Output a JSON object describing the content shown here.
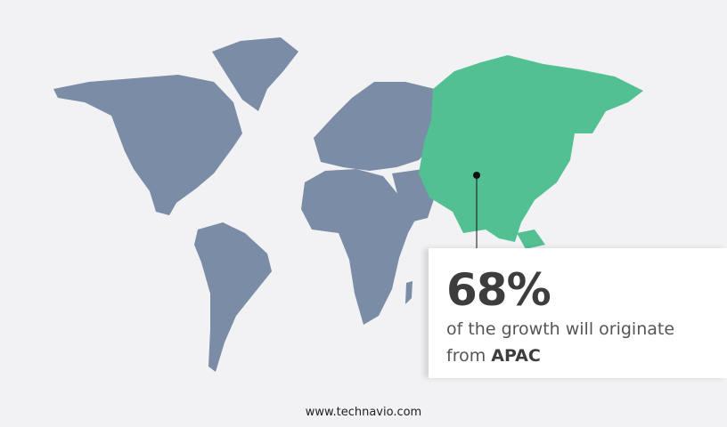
{
  "colors": {
    "background": "#f2f2f4",
    "other_regions": "#7a8ca6",
    "highlight_region": "#52c093",
    "text": "#3d3d3d"
  },
  "map": {
    "highlighted_region": "APAC"
  },
  "callout": {
    "percent": "68%",
    "text_before": "of the growth will originate from",
    "region": "APAC"
  },
  "footer": {
    "website": "www.technavio.com"
  }
}
